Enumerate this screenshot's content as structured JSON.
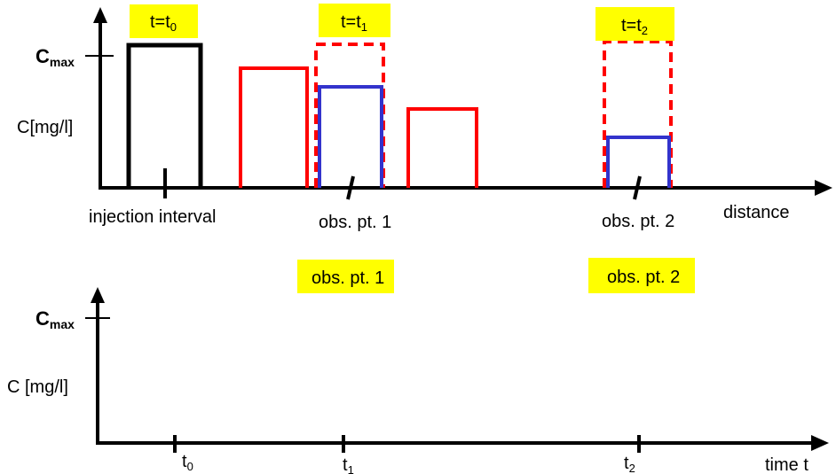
{
  "colors": {
    "axis": "#000000",
    "initial_pulse": "#000000",
    "pulse": "#ff0000",
    "observed_pulse": "#3333cc",
    "highlight": "#ffff00"
  },
  "top_panel": {
    "y_axis": {
      "cmax_main": "C",
      "cmax_sub": "max",
      "label": "C[mg/l]"
    },
    "x_axis": {
      "label": "distance",
      "injection_label": "injection interval",
      "obs1_label": "obs. pt. 1",
      "obs2_label": "obs. pt. 2"
    },
    "time_tags": [
      {
        "main": "t=t",
        "sub": "0"
      },
      {
        "main": "t=t",
        "sub": "1"
      },
      {
        "main": "t=t",
        "sub": "2"
      }
    ]
  },
  "bottom_panel": {
    "y_axis": {
      "cmax_main": "C",
      "cmax_sub": "max",
      "label": "C [mg/l]"
    },
    "x_axis": {
      "label": "time t",
      "ticks": [
        {
          "main": "t",
          "sub": "0"
        },
        {
          "main": "t",
          "sub": "1"
        },
        {
          "main": "t",
          "sub": "2"
        }
      ]
    },
    "obs_tags": [
      "obs. pt. 1",
      "obs. pt. 2"
    ]
  }
}
